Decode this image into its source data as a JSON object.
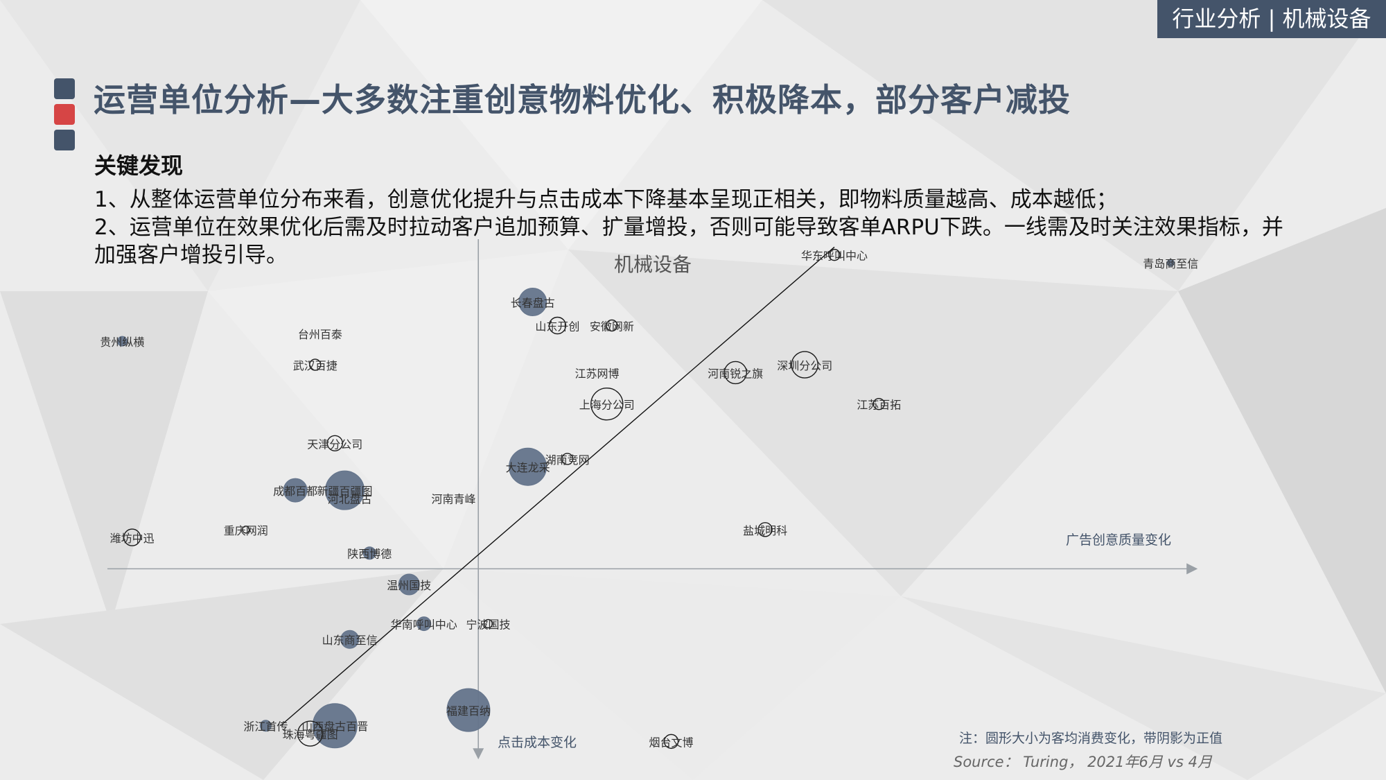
{
  "header": {
    "tag": "行业分析 | 机械设备",
    "title": "运营单位分析—大多数注重创意物料优化、积极降本，部分客户减投",
    "accent_colors": [
      "#44546a",
      "#d64545",
      "#44546a"
    ]
  },
  "key_findings": {
    "heading": "关键发现",
    "lines": [
      "1、从整体运营单位分布来看，创意优化提升与点击成本下降基本呈现正相关，即物料质量越高、成本越低；",
      "2、运营单位在效果优化后需及时拉动客户追加预算、扩量增投，否则可能导致客单ARPU下跌。一线需及时关注效果指标，并",
      "加强客户增投引导。"
    ]
  },
  "chart_data": {
    "type": "scatter",
    "title": "机械设备",
    "xlabel": "广告创意质量变化",
    "ylabel": "点击成本变化",
    "bubble_note": "注：圆形大小为客均消费变化，带阴影为正值",
    "source": "Source： Turing， 2021年6月 vs 4月",
    "points": [
      {
        "name": "华东呼叫中心",
        "x": 0.72,
        "y": 0.4,
        "r": 8,
        "pos": false
      },
      {
        "name": "青岛商至信",
        "x": 1.4,
        "y": 0.39,
        "r": 5,
        "pos": true
      },
      {
        "name": "长春盘古",
        "x": 0.11,
        "y": 0.34,
        "r": 20,
        "pos": true
      },
      {
        "name": "山东开创",
        "x": 0.16,
        "y": 0.31,
        "r": 12,
        "pos": false
      },
      {
        "name": "安徽网新",
        "x": 0.27,
        "y": 0.31,
        "r": 8,
        "pos": false
      },
      {
        "name": "贵州纵横",
        "x": -0.72,
        "y": 0.29,
        "r": 7,
        "pos": true
      },
      {
        "name": "台州百泰",
        "x": -0.32,
        "y": 0.3,
        "r": 0,
        "pos": false
      },
      {
        "name": "武汉百捷",
        "x": -0.33,
        "y": 0.26,
        "r": 8,
        "pos": false
      },
      {
        "name": "江苏网博",
        "x": 0.24,
        "y": 0.25,
        "r": 0,
        "pos": false
      },
      {
        "name": "河南锐之旗",
        "x": 0.52,
        "y": 0.25,
        "r": 16,
        "pos": false
      },
      {
        "name": "深圳分公司",
        "x": 0.66,
        "y": 0.26,
        "r": 19,
        "pos": false
      },
      {
        "name": "上海分公司",
        "x": 0.26,
        "y": 0.21,
        "r": 23,
        "pos": false
      },
      {
        "name": "江苏百拓",
        "x": 0.81,
        "y": 0.21,
        "r": 8,
        "pos": false
      },
      {
        "name": "天津分公司",
        "x": -0.29,
        "y": 0.16,
        "r": 11,
        "pos": false
      },
      {
        "name": "大连龙采",
        "x": 0.1,
        "y": 0.13,
        "r": 27,
        "pos": true
      },
      {
        "name": "湖南竞网",
        "x": 0.18,
        "y": 0.14,
        "r": 8,
        "pos": false
      },
      {
        "name": "成都百都",
        "x": -0.37,
        "y": 0.1,
        "r": 17,
        "pos": true
      },
      {
        "name": "新疆百疆图",
        "x": -0.27,
        "y": 0.1,
        "r": 28,
        "pos": true
      },
      {
        "name": "河北盘古",
        "x": -0.26,
        "y": 0.09,
        "r": 0,
        "pos": false
      },
      {
        "name": "河南青峰",
        "x": -0.05,
        "y": 0.09,
        "r": 0,
        "pos": false
      },
      {
        "name": "盐城明科",
        "x": 0.58,
        "y": 0.05,
        "r": 10,
        "pos": false
      },
      {
        "name": "潍坊中迅",
        "x": -0.7,
        "y": 0.04,
        "r": 12,
        "pos": false
      },
      {
        "name": "重庆网润",
        "x": -0.47,
        "y": 0.05,
        "r": 5,
        "pos": false
      },
      {
        "name": "陕西博德",
        "x": -0.22,
        "y": 0.02,
        "r": 9,
        "pos": true
      },
      {
        "name": "温州国技",
        "x": -0.14,
        "y": -0.02,
        "r": 15,
        "pos": true
      },
      {
        "name": "华南呼叫中心",
        "x": -0.11,
        "y": -0.07,
        "r": 10,
        "pos": true
      },
      {
        "name": "宁波国技",
        "x": 0.02,
        "y": -0.07,
        "r": 6,
        "pos": false
      },
      {
        "name": "山东商至信",
        "x": -0.26,
        "y": -0.09,
        "r": 13,
        "pos": true
      },
      {
        "name": "福建百纳",
        "x": -0.02,
        "y": -0.18,
        "r": 31,
        "pos": true
      },
      {
        "name": "山西盘古百晋",
        "x": -0.29,
        "y": -0.2,
        "r": 32,
        "pos": true
      },
      {
        "name": "浙江首传",
        "x": -0.43,
        "y": -0.2,
        "r": 8,
        "pos": true
      },
      {
        "name": "珠海粤疆图",
        "x": -0.34,
        "y": -0.21,
        "r": 18,
        "pos": false
      },
      {
        "name": "烟台文博",
        "x": 0.39,
        "y": -0.22,
        "r": 10,
        "pos": false
      }
    ],
    "trendline": [
      [
        -0.4,
        -0.2
      ],
      [
        0.72,
        0.41
      ]
    ],
    "xlim": [
      -0.75,
      1.45
    ],
    "ylim": [
      -0.24,
      0.42
    ],
    "colors": {
      "filled": "#64748b",
      "outline": "#1a1a1a",
      "axis": "#9aa0a6",
      "label": "#333333",
      "axis_label": "#44546a"
    }
  }
}
